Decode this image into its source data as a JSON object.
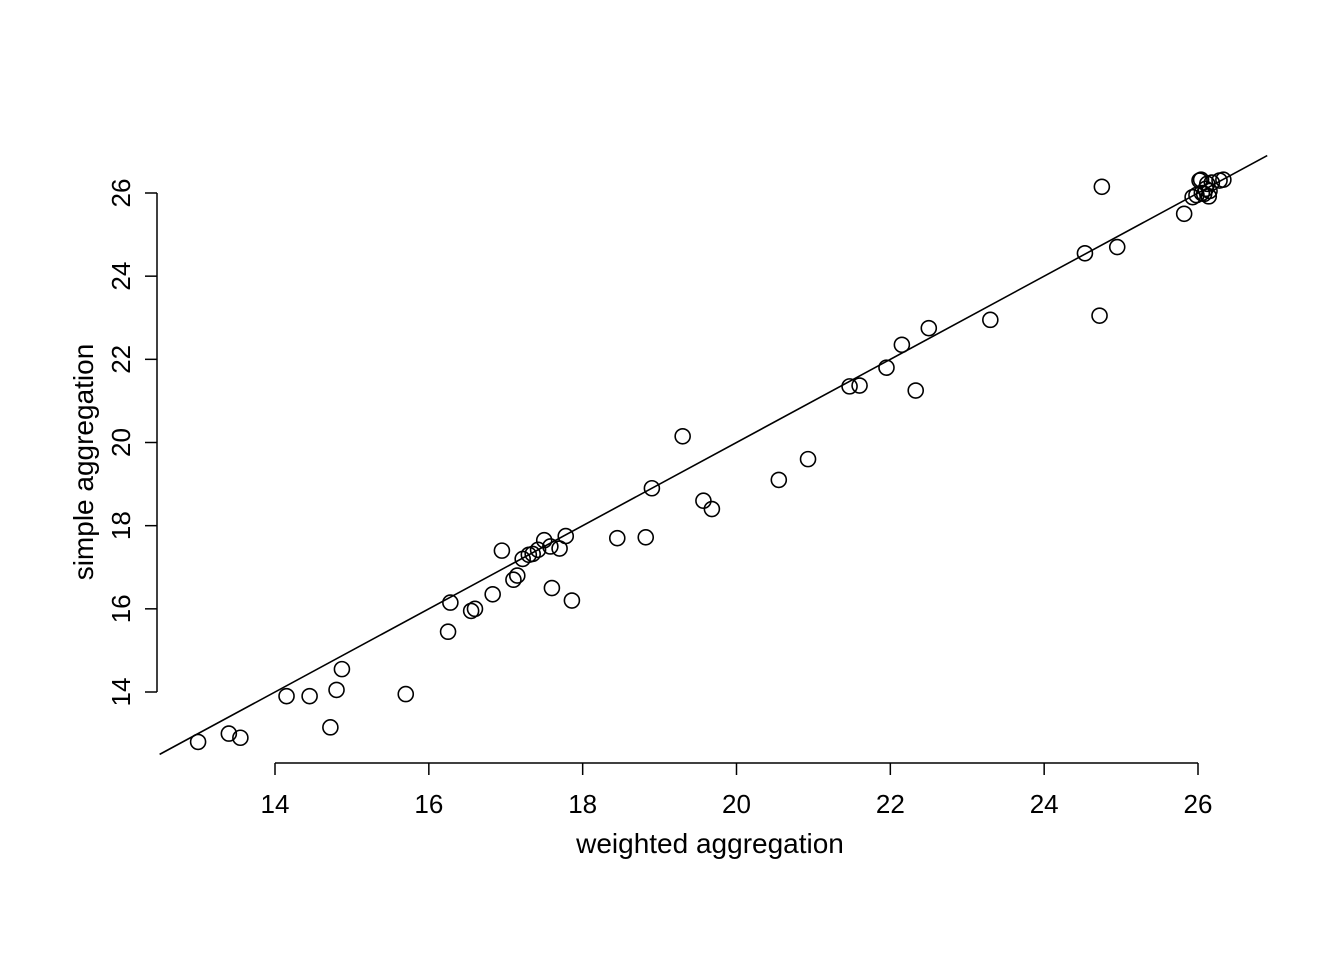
{
  "chart_data": {
    "type": "scatter",
    "title": "",
    "xlabel": "weighted aggregation",
    "ylabel": "simple aggregation",
    "xlim": [
      12.5,
      26.8
    ],
    "ylim": [
      12.5,
      26.8
    ],
    "x_ticks": [
      "14",
      "16",
      "18",
      "20",
      "22",
      "24",
      "26"
    ],
    "y_ticks": [
      "14",
      "16",
      "18",
      "20",
      "22",
      "24",
      "26"
    ],
    "grid": false,
    "reference_line": {
      "intercept": 0,
      "slope": 1,
      "x_range": [
        12.5,
        26.9
      ]
    },
    "points": [
      {
        "x": 13.0,
        "y": 12.8
      },
      {
        "x": 13.4,
        "y": 13.0
      },
      {
        "x": 13.55,
        "y": 12.9
      },
      {
        "x": 14.15,
        "y": 13.9
      },
      {
        "x": 14.45,
        "y": 13.9
      },
      {
        "x": 14.72,
        "y": 13.15
      },
      {
        "x": 14.8,
        "y": 14.05
      },
      {
        "x": 14.87,
        "y": 14.55
      },
      {
        "x": 15.7,
        "y": 13.95
      },
      {
        "x": 16.25,
        "y": 15.45
      },
      {
        "x": 16.28,
        "y": 16.15
      },
      {
        "x": 16.55,
        "y": 15.95
      },
      {
        "x": 16.6,
        "y": 16.0
      },
      {
        "x": 16.83,
        "y": 16.35
      },
      {
        "x": 16.95,
        "y": 17.4
      },
      {
        "x": 17.1,
        "y": 16.7
      },
      {
        "x": 17.15,
        "y": 16.8
      },
      {
        "x": 17.22,
        "y": 17.2
      },
      {
        "x": 17.3,
        "y": 17.3
      },
      {
        "x": 17.35,
        "y": 17.32
      },
      {
        "x": 17.42,
        "y": 17.42
      },
      {
        "x": 17.5,
        "y": 17.65
      },
      {
        "x": 17.58,
        "y": 17.5
      },
      {
        "x": 17.6,
        "y": 16.5
      },
      {
        "x": 17.7,
        "y": 17.45
      },
      {
        "x": 17.78,
        "y": 17.75
      },
      {
        "x": 17.86,
        "y": 16.2
      },
      {
        "x": 18.45,
        "y": 17.7
      },
      {
        "x": 18.82,
        "y": 17.72
      },
      {
        "x": 18.9,
        "y": 18.9
      },
      {
        "x": 19.3,
        "y": 20.15
      },
      {
        "x": 19.57,
        "y": 18.6
      },
      {
        "x": 19.68,
        "y": 18.4
      },
      {
        "x": 20.55,
        "y": 19.1
      },
      {
        "x": 20.93,
        "y": 19.6
      },
      {
        "x": 21.47,
        "y": 21.35
      },
      {
        "x": 21.6,
        "y": 21.37
      },
      {
        "x": 21.95,
        "y": 21.8
      },
      {
        "x": 22.15,
        "y": 22.35
      },
      {
        "x": 22.33,
        "y": 21.25
      },
      {
        "x": 22.5,
        "y": 22.75
      },
      {
        "x": 23.3,
        "y": 22.95
      },
      {
        "x": 24.53,
        "y": 24.55
      },
      {
        "x": 24.72,
        "y": 23.05
      },
      {
        "x": 24.75,
        "y": 26.15
      },
      {
        "x": 24.95,
        "y": 24.7
      },
      {
        "x": 25.82,
        "y": 25.5
      },
      {
        "x": 25.93,
        "y": 25.9
      },
      {
        "x": 25.98,
        "y": 25.95
      },
      {
        "x": 26.02,
        "y": 26.3
      },
      {
        "x": 26.04,
        "y": 26.32
      },
      {
        "x": 26.05,
        "y": 26.0
      },
      {
        "x": 26.08,
        "y": 25.98
      },
      {
        "x": 26.1,
        "y": 26.1
      },
      {
        "x": 26.12,
        "y": 26.22
      },
      {
        "x": 26.14,
        "y": 25.92
      },
      {
        "x": 26.15,
        "y": 26.05
      },
      {
        "x": 26.18,
        "y": 26.25
      },
      {
        "x": 26.28,
        "y": 26.3
      },
      {
        "x": 26.33,
        "y": 26.32
      }
    ]
  }
}
